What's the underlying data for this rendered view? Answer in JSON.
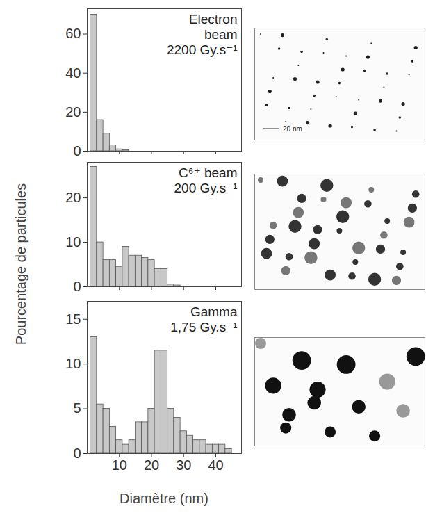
{
  "chart_data": [
    {
      "type": "histogram",
      "title": "Electron beam",
      "subtitle": "2200 Gy.s⁻¹",
      "bins": [
        1,
        3,
        5,
        7,
        9,
        11,
        13
      ],
      "values": [
        70,
        16,
        9,
        3,
        1,
        0.5
      ],
      "color": "#c8c8c8",
      "xlim": [
        0,
        48
      ],
      "xticks": [
        10,
        20,
        30,
        40
      ],
      "ylim": [
        0,
        73
      ],
      "yticks": [
        0,
        20,
        40,
        60
      ],
      "tick_labels": "y",
      "annotations": [
        "20 nm"
      ]
    },
    {
      "type": "histogram",
      "title": "C⁶⁺ beam",
      "subtitle": "200 Gy.s⁻¹",
      "bins": [
        1,
        3,
        5,
        7,
        9,
        11,
        13,
        15,
        17,
        19,
        21,
        23,
        25,
        27,
        29
      ],
      "values": [
        27,
        10,
        6,
        6,
        4.5,
        9,
        7,
        7,
        6.5,
        6,
        4,
        4,
        0.5,
        0.3
      ],
      "color": "#c8c8c8",
      "xlim": [
        0,
        48
      ],
      "xticks": [
        10,
        20,
        30,
        40
      ],
      "ylim": [
        0,
        28
      ],
      "yticks": [
        0,
        10,
        20
      ],
      "tick_labels": "y",
      "ylabel": "Pourcentage de particules"
    },
    {
      "type": "histogram",
      "title": "Gamma",
      "subtitle": "1,75 Gy.s⁻¹",
      "bins": [
        1,
        3,
        5,
        7,
        9,
        11,
        13,
        15,
        17,
        19,
        21,
        23,
        25,
        27,
        29,
        31,
        33,
        35,
        37,
        39,
        41,
        43,
        45
      ],
      "values": [
        13,
        5.5,
        5,
        3,
        1.5,
        1,
        1.5,
        3.5,
        3.5,
        5,
        11.5,
        11.5,
        5,
        4,
        2.5,
        2,
        1.5,
        1.5,
        1,
        1,
        1,
        0.5
      ],
      "color": "#c8c8c8",
      "xlim": [
        0,
        48
      ],
      "xticks": [
        10,
        20,
        30,
        40
      ],
      "ylim": [
        0,
        17
      ],
      "yticks": [
        0,
        5,
        10,
        15
      ],
      "xlabel": "Diamètre (nm)"
    }
  ]
}
